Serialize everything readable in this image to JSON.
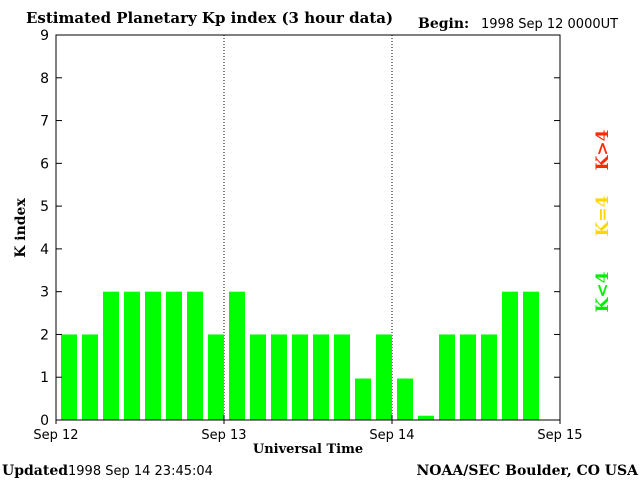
{
  "header": {
    "title": "Estimated Planetary Kp index (3 hour data)",
    "begin_label": "Begin:",
    "begin_value": "1998 Sep 12 0000UT"
  },
  "footer": {
    "updated_label": "Updated",
    "updated_value": "1998 Sep 14 23:45:04",
    "credit": "NOAA/SEC Boulder, CO USA"
  },
  "legend": {
    "items": [
      {
        "label": "K>4",
        "color": "#ff2a00"
      },
      {
        "label": "K=4",
        "color": "#ffd700"
      },
      {
        "label": "K<4",
        "color": "#00ee00"
      }
    ]
  },
  "chart_data": {
    "type": "bar",
    "title": "Estimated Planetary Kp index (3 hour data)",
    "xlabel": "Universal Time",
    "ylabel": "K index",
    "ylim": [
      0,
      9
    ],
    "yticks": [
      0,
      1,
      2,
      3,
      4,
      5,
      6,
      7,
      8,
      9
    ],
    "x_tick_labels": [
      "Sep 12",
      "Sep 13",
      "Sep 14",
      "Sep 15"
    ],
    "day_dividers": true,
    "bar_color": "#00ff00",
    "values": [
      2,
      2,
      3,
      3,
      3,
      3,
      3,
      2,
      3,
      2,
      2,
      2,
      2,
      2,
      0.97,
      2,
      0.97,
      0.1,
      2,
      2,
      2,
      3,
      3
    ]
  }
}
